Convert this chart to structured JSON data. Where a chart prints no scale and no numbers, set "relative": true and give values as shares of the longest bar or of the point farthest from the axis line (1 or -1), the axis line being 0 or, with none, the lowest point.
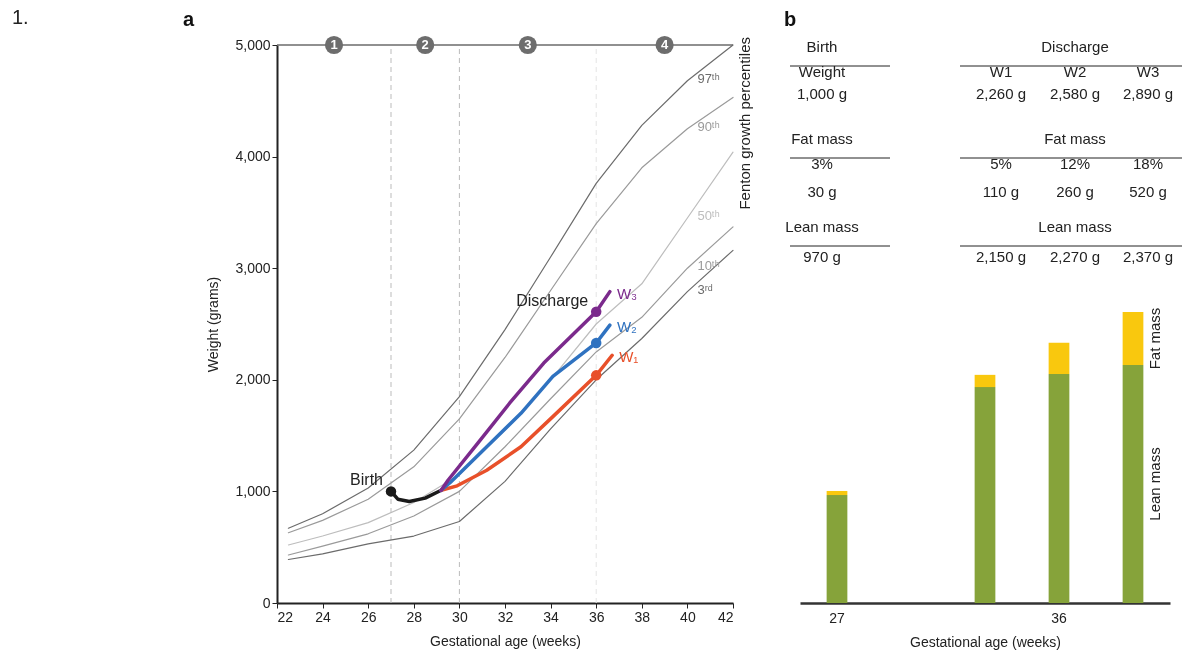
{
  "chart_data": [
    {
      "type": "line",
      "title": "a",
      "xlabel": "Gestational age (weeks)",
      "ylabel": "Weight (grams)",
      "xlim": [
        22,
        42
      ],
      "ylim": [
        0,
        5000
      ],
      "xticks": [
        22,
        24,
        26,
        28,
        30,
        32,
        34,
        36,
        38,
        40,
        42
      ],
      "yticks": [
        0,
        {
          "value": 1000,
          "label": "1,000"
        },
        {
          "value": 2000,
          "label": "2,000"
        },
        {
          "value": 3000,
          "label": "3,000"
        },
        {
          "value": 4000,
          "label": "4,000"
        },
        {
          "value": 5000,
          "label": "5,000"
        }
      ],
      "x": [
        22.5,
        24,
        26,
        28,
        30,
        32,
        34,
        36,
        38,
        40,
        42
      ],
      "ref_lines": [
        {
          "axis": "x",
          "value": 27,
          "line_style": "dashed",
          "color": "#bbbbbb"
        },
        {
          "axis": "x",
          "value": 30,
          "line_style": "dashed",
          "color": "#bbbbbb"
        },
        {
          "axis": "x",
          "value": 36,
          "line_style": "dashed",
          "color": "#e4e4e4"
        }
      ],
      "annotations": [
        "1.",
        "Fenton growth percentiles",
        {
          "text": "Birth",
          "x": 27,
          "y": 1000
        },
        {
          "text": "Discharge",
          "x": 36,
          "y": 2610
        },
        {
          "text": "1",
          "x": 24.5,
          "y": 5000
        },
        {
          "text": "2",
          "x": 28.5,
          "y": 5000
        },
        {
          "text": "3",
          "x": 33,
          "y": 5000
        },
        {
          "text": "4",
          "x": 39,
          "y": 5000
        }
      ],
      "series": [
        {
          "name": "97ᵗʰ",
          "color": "#6b6b6b",
          "values": [
            670,
            800,
            1030,
            1370,
            1850,
            2450,
            3100,
            3760,
            4280,
            4680,
            5000
          ]
        },
        {
          "name": "90ᵗʰ",
          "color": "#9a9a9a",
          "values": [
            630,
            740,
            930,
            1220,
            1650,
            2200,
            2800,
            3400,
            3900,
            4250,
            4530
          ]
        },
        {
          "name": "50ᵗʰ",
          "color": "#bdbdbd",
          "values": [
            520,
            600,
            720,
            900,
            1150,
            1550,
            2000,
            2500,
            2860,
            3450,
            4040
          ]
        },
        {
          "name": "10ᵗʰ",
          "color": "#9a9a9a",
          "values": [
            430,
            510,
            620,
            780,
            1000,
            1400,
            1830,
            2250,
            2560,
            3000,
            3370
          ]
        },
        {
          "name": "3ʳᵈ",
          "color": "#6b6b6b",
          "values": [
            390,
            440,
            530,
            600,
            730,
            1090,
            1560,
            2000,
            2370,
            2790,
            3160
          ]
        },
        {
          "color": "#1a1a1a",
          "x": [
            27,
            27.3,
            27.8,
            28.5,
            29.2
          ],
          "values": [
            1000,
            930,
            910,
            940,
            1010
          ]
        },
        {
          "name": "W₁",
          "color": "#e8502a",
          "x": [
            29.2,
            29.9,
            31.2,
            32.7,
            34.1,
            36,
            36.7
          ],
          "values": [
            1010,
            1050,
            1190,
            1400,
            1670,
            2040,
            2220
          ]
        },
        {
          "name": "W₂",
          "color": "#2f72c0",
          "x": [
            29.2,
            29.6,
            31.2,
            32.7,
            34.1,
            36,
            36.6
          ],
          "values": [
            1010,
            1080,
            1400,
            1700,
            2030,
            2330,
            2490
          ]
        },
        {
          "name": "W₃",
          "color": "#7b2a8c",
          "x": [
            29.2,
            29.5,
            30.8,
            32.2,
            33.7,
            36,
            36.6
          ],
          "values": [
            1010,
            1100,
            1430,
            1790,
            2150,
            2610,
            2790
          ]
        },
        {
          "type": "scatter",
          "x": [
            27,
            36,
            36,
            36
          ],
          "values": [
            1000,
            2040,
            2330,
            2610
          ],
          "colors": [
            "#1a1a1a",
            "#e8502a",
            "#2f72c0",
            "#7b2a8c"
          ]
        }
      ]
    },
    {
      "type": "other",
      "title": "b",
      "annotations": [
        "Birth",
        "Discharge",
        "Weight",
        "W1",
        "W2",
        "W3",
        "1,000 g",
        "2,260 g",
        "2,580 g",
        "2,890 g",
        "Fat mass",
        "Fat mass",
        "3%",
        "5%",
        "12%",
        "18%",
        "30 g",
        "110 g",
        "260 g",
        "520 g",
        "Lean mass",
        "Lean mass",
        "970 g",
        "2,150 g",
        "2,270 g",
        "2,370 g"
      ]
    },
    {
      "type": "bar",
      "stacked": true,
      "relative": true,
      "xlabel": "Gestational age (weeks)",
      "categories": [
        "27",
        null,
        null,
        "36",
        null
      ],
      "series": [
        {
          "name": "Lean mass",
          "color": "#86a33a",
          "values": [
            0.371,
            null,
            0.742,
            0.787,
            0.818
          ]
        },
        {
          "name": "Fat mass",
          "color": "#f9c80e",
          "values": [
            0.014,
            null,
            0.042,
            0.107,
            0.182
          ]
        }
      ]
    }
  ]
}
